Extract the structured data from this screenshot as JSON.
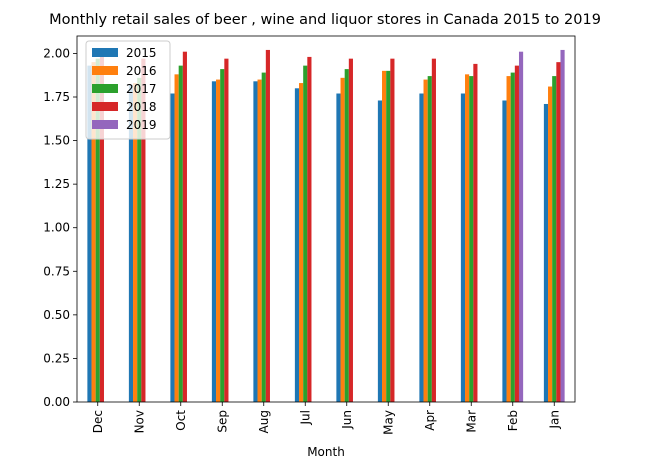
{
  "chart_data": {
    "type": "bar",
    "title": "Monthly retail sales of beer , wine and liquor stores in Canada 2015 to 2019",
    "xlabel": "Month",
    "ylabel": "",
    "ylim": [
      0,
      2.1
    ],
    "yticks": [
      "0.00",
      "0.25",
      "0.50",
      "0.75",
      "1.00",
      "1.25",
      "1.50",
      "1.75",
      "2.00"
    ],
    "categories": [
      "Dec",
      "Nov",
      "Oct",
      "Sep",
      "Aug",
      "Jul",
      "Jun",
      "May",
      "Apr",
      "Mar",
      "Feb",
      "Jan"
    ],
    "series": [
      {
        "name": "2015",
        "color": "#1f77b4",
        "values": [
          1.93,
          1.82,
          1.77,
          1.84,
          1.84,
          1.8,
          1.77,
          1.73,
          1.77,
          1.77,
          1.73,
          1.71
        ]
      },
      {
        "name": "2016",
        "color": "#ff7f0e",
        "values": [
          1.95,
          1.83,
          1.88,
          1.85,
          1.85,
          1.83,
          1.86,
          1.9,
          1.85,
          1.88,
          1.87,
          1.81
        ]
      },
      {
        "name": "2017",
        "color": "#2ca02c",
        "values": [
          1.97,
          1.86,
          1.93,
          1.91,
          1.89,
          1.93,
          1.91,
          1.9,
          1.87,
          1.87,
          1.89,
          1.87
        ]
      },
      {
        "name": "2018",
        "color": "#d62728",
        "values": [
          1.98,
          1.97,
          2.01,
          1.97,
          2.02,
          1.98,
          1.97,
          1.97,
          1.97,
          1.94,
          1.93,
          1.95
        ]
      },
      {
        "name": "2019",
        "color": "#9467bd",
        "values": [
          null,
          null,
          null,
          null,
          null,
          null,
          null,
          null,
          null,
          null,
          2.01,
          2.02
        ]
      }
    ],
    "grid": false,
    "legend_position": "top-left"
  }
}
